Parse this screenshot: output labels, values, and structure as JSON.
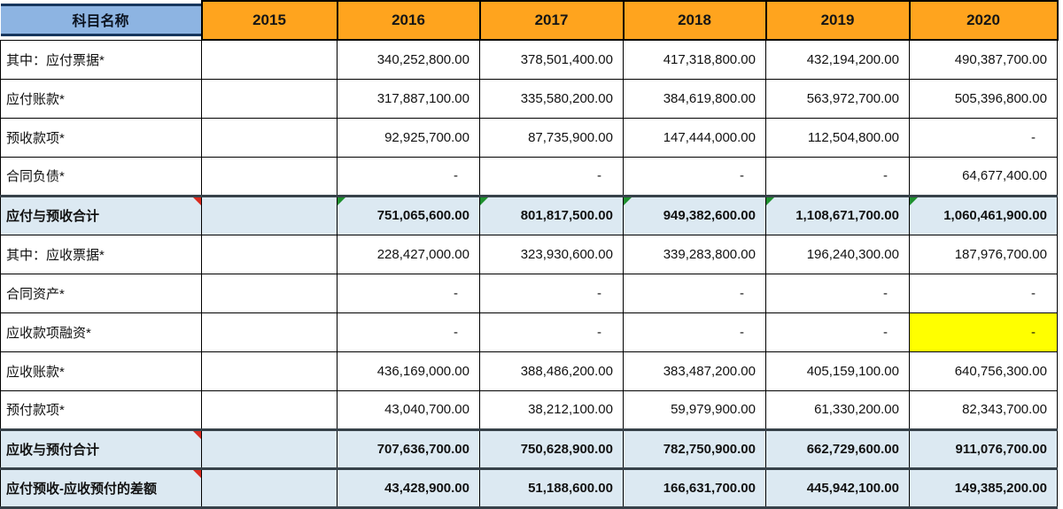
{
  "table": {
    "columns": [
      "科目名称",
      "2015",
      "2016",
      "2017",
      "2018",
      "2019",
      "2020"
    ],
    "rows": [
      {
        "label": "其中：应付票据*",
        "style": "normal",
        "values": [
          "",
          "340,252,800.00",
          "378,501,400.00",
          "417,318,800.00",
          "432,194,200.00",
          "490,387,700.00"
        ]
      },
      {
        "label": "应付账款*",
        "style": "normal",
        "values": [
          "",
          "317,887,100.00",
          "335,580,200.00",
          "384,619,800.00",
          "563,972,700.00",
          "505,396,800.00"
        ]
      },
      {
        "label": "预收款项*",
        "style": "normal",
        "values": [
          "",
          "92,925,700.00",
          "87,735,900.00",
          "147,444,000.00",
          "112,504,800.00",
          "-"
        ]
      },
      {
        "label": "合同负债*",
        "style": "normal",
        "values": [
          "",
          "-",
          "-",
          "-",
          "-",
          "64,677,400.00"
        ]
      },
      {
        "label": "应付与预收合计",
        "style": "total",
        "red_comment_on_label": true,
        "green_flag_cols": [
          2,
          3,
          4,
          5,
          6
        ],
        "values": [
          "",
          "751,065,600.00",
          "801,817,500.00",
          "949,382,600.00",
          "1,108,671,700.00",
          "1,060,461,900.00"
        ]
      },
      {
        "label": "其中：应收票据*",
        "style": "normal",
        "values": [
          "",
          "228,427,000.00",
          "323,930,600.00",
          "339,283,800.00",
          "196,240,300.00",
          "187,976,700.00"
        ]
      },
      {
        "label": "合同资产*",
        "style": "normal",
        "values": [
          "",
          "-",
          "-",
          "-",
          "-",
          "-"
        ]
      },
      {
        "label": "应收款项融资*",
        "style": "normal",
        "yellow_cols": [
          6
        ],
        "values": [
          "",
          "-",
          "-",
          "-",
          "-",
          "-"
        ]
      },
      {
        "label": "应收账款*",
        "style": "normal",
        "values": [
          "",
          "436,169,000.00",
          "388,486,200.00",
          "383,487,200.00",
          "405,159,100.00",
          "640,756,300.00"
        ]
      },
      {
        "label": "预付款项*",
        "style": "normal",
        "values": [
          "",
          "43,040,700.00",
          "38,212,100.00",
          "59,979,900.00",
          "61,330,200.00",
          "82,343,700.00"
        ]
      },
      {
        "label": "应收与预付合计",
        "style": "total",
        "red_comment_on_label": true,
        "values": [
          "",
          "707,636,700.00",
          "750,628,900.00",
          "782,750,900.00",
          "662,729,600.00",
          "911,076,700.00"
        ]
      },
      {
        "label": "应付预收-应收预付的差额",
        "style": "total",
        "red_comment_on_label": true,
        "values": [
          "",
          "43,428,900.00",
          "51,188,600.00",
          "166,631,700.00",
          "445,942,100.00",
          "149,385,200.00"
        ]
      }
    ]
  },
  "icons": {
    "red_comment_marker": "red-comment-triangle",
    "green_flag_marker": "green-formula-triangle"
  },
  "colors": {
    "header-blue": "#8DB4E2",
    "navy": "#17375E",
    "orange": "#FFA41E",
    "total-bg": "#DCE9F2",
    "yellow": "#FFFF00",
    "red-flag": "#D92B20",
    "green-flag": "#1E8F2E",
    "grid": "#000000",
    "medium": "#37424A"
  }
}
